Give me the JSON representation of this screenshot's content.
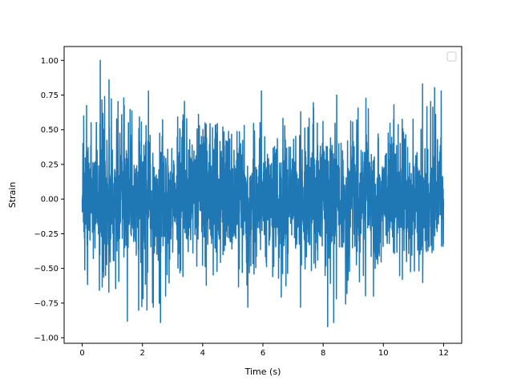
{
  "chart_data": {
    "type": "line",
    "title": "",
    "xlabel": "Time (s)",
    "ylabel": "Strain",
    "xlim": [
      -0.6,
      12.6
    ],
    "ylim": [
      -1.04,
      1.1
    ],
    "xticks": [
      0,
      2,
      4,
      6,
      8,
      10,
      12
    ],
    "xtick_labels": [
      "0",
      "2",
      "4",
      "6",
      "8",
      "10",
      "12"
    ],
    "yticks": [
      -1.0,
      -0.75,
      -0.5,
      -0.25,
      0.0,
      0.25,
      0.5,
      0.75,
      1.0
    ],
    "ytick_labels": [
      "−1.00",
      "−0.75",
      "−0.50",
      "−0.25",
      "0.00",
      "0.25",
      "0.50",
      "0.75",
      "1.00"
    ],
    "grid": false,
    "legend": {
      "placement": "top-right",
      "entries": []
    },
    "series": [
      {
        "color": "#1f77b4",
        "x_start": 0,
        "x_end": 12.0,
        "range_min": -0.92,
        "range_max": 1.0,
        "envelope_upper": [
          0.6,
          1.0,
          0.72,
          0.72,
          0.55,
          0.67,
          0.75,
          0.62,
          0.5,
          0.65,
          0.55,
          0.6,
          0.75,
          0.75,
          0.55,
          0.62,
          0.78,
          0.68,
          0.7,
          0.83,
          0.78
        ],
        "envelope_lower": [
          -0.62,
          -0.69,
          -0.72,
          -0.88,
          -0.79,
          -0.89,
          -0.63,
          -0.65,
          -0.68,
          -0.71,
          -0.6,
          -0.73,
          -0.78,
          -0.74,
          -0.92,
          -0.66,
          -0.72,
          -0.6,
          -0.62,
          -0.6,
          -0.56
        ],
        "spikes_max": [
          [
            0.6,
            1.0
          ],
          [
            0.05,
            0.6
          ],
          [
            1.38,
            0.73
          ],
          [
            2.2,
            0.78
          ],
          [
            5.95,
            0.78
          ],
          [
            8.45,
            0.75
          ],
          [
            10.35,
            0.68
          ],
          [
            11.3,
            0.83
          ],
          [
            11.92,
            0.78
          ]
        ],
        "spikes_min": [
          [
            1.5,
            -0.88
          ],
          [
            2.6,
            -0.89
          ],
          [
            2.15,
            -0.8
          ],
          [
            5.5,
            -0.78
          ],
          [
            7.25,
            -0.78
          ],
          [
            8.15,
            -0.92
          ]
        ]
      }
    ]
  }
}
